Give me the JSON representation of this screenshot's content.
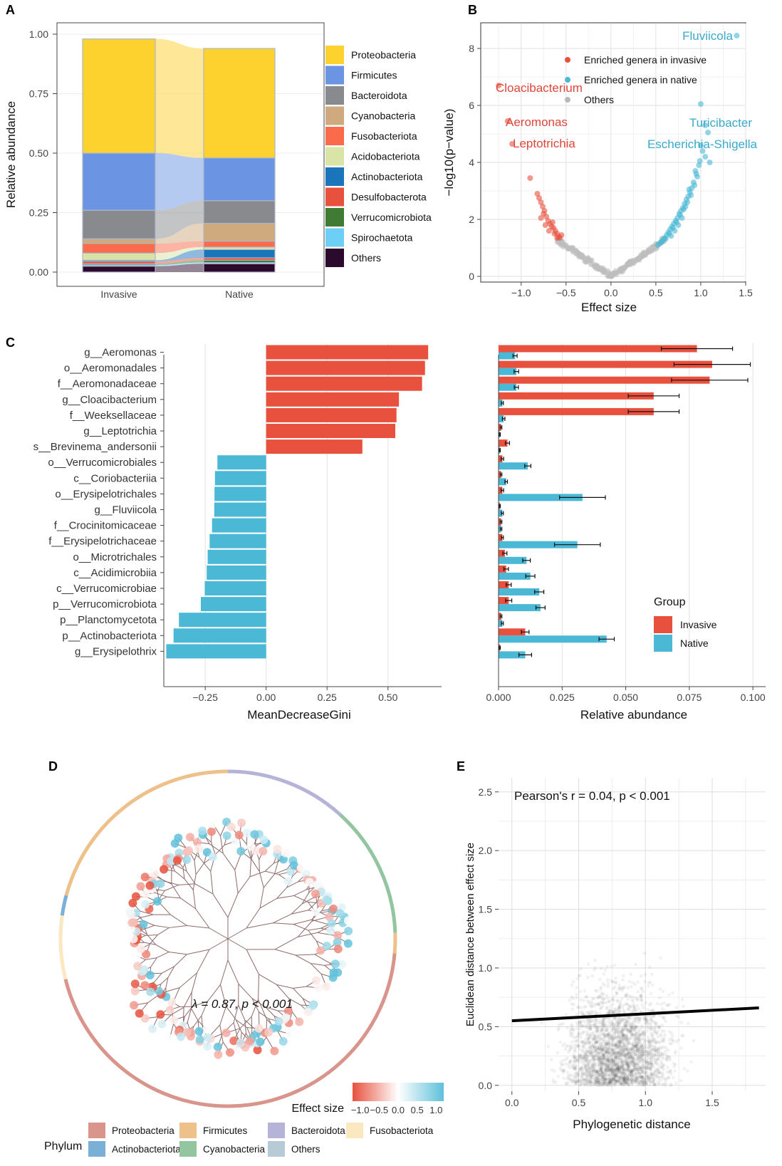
{
  "panels": [
    "A",
    "B",
    "C",
    "D",
    "E"
  ],
  "colors": {
    "invasive": "#e8513d",
    "native": "#4bb9d6",
    "others": "#b9b9b9",
    "red_text": "#e0453a",
    "blue_text": "#3aa9c9"
  },
  "chart_data": [
    {
      "id": "A",
      "type": "bar",
      "subtype": "stacked-alluvial",
      "xlabel": "",
      "ylabel": "Relative abundance",
      "ylim": [
        0,
        1
      ],
      "yticks": [
        "0.00",
        "0.25",
        "0.50",
        "0.75",
        "1.00"
      ],
      "categories": [
        "Invasive",
        "Native"
      ],
      "series": [
        {
          "name": "Others",
          "color": "#2b0a2e",
          "values": [
            0.025,
            0.035
          ]
        },
        {
          "name": "Spirochaetota",
          "color": "#6dcff6",
          "values": [
            0.005,
            0.005
          ]
        },
        {
          "name": "Verrucomicrobiota",
          "color": "#3f7b33",
          "values": [
            0.005,
            0.01
          ]
        },
        {
          "name": "Desulfobacterota",
          "color": "#e8513d",
          "values": [
            0.01,
            0.01
          ]
        },
        {
          "name": "Actinobacteriota",
          "color": "#1b75bb",
          "values": [
            0.005,
            0.035
          ]
        },
        {
          "name": "Acidobacteriota",
          "color": "#d8e5a7",
          "values": [
            0.03,
            0.01
          ]
        },
        {
          "name": "Fusobacteriota",
          "color": "#f96b4a",
          "values": [
            0.04,
            0.025
          ]
        },
        {
          "name": "Cyanobacteria",
          "color": "#cfaa7e",
          "values": [
            0.02,
            0.075
          ]
        },
        {
          "name": "Bacteroidota",
          "color": "#888a8e",
          "values": [
            0.12,
            0.095
          ]
        },
        {
          "name": "Firmicutes",
          "color": "#6b95e3",
          "values": [
            0.24,
            0.18
          ]
        },
        {
          "name": "Proteobacteria",
          "color": "#fdd22f",
          "values": [
            0.48,
            0.46
          ]
        }
      ],
      "legend": [
        "Proteobacteria",
        "Firmicutes",
        "Bacteroidota",
        "Cyanobacteria",
        "Fusobacteriota",
        "Acidobacteriota",
        "Actinobacteriota",
        "Desulfobacterota",
        "Verrucomicrobiota",
        "Spirochaetota",
        "Others"
      ],
      "legend_position": "right"
    },
    {
      "id": "B",
      "type": "scatter",
      "subtype": "volcano",
      "xlabel": "Effect size",
      "ylabel": "−log10(p−value)",
      "xlim": [
        -1.45,
        1.5
      ],
      "ylim": [
        -0.2,
        8.9
      ],
      "xticks": [
        -1.0,
        -0.5,
        0.0,
        0.5,
        1.0,
        1.5
      ],
      "xtick_labels": [
        "−1.0",
        "−0.5",
        "0.0",
        "0.5",
        "1.0",
        "1.5"
      ],
      "yticks": [
        0,
        2,
        4,
        6,
        8
      ],
      "legend": [
        "Enriched genera in invasive",
        "Enriched genera in native",
        "Others"
      ],
      "legend_position": "top-right",
      "invasive_points": [
        [
          -1.25,
          6.7
        ],
        [
          -1.15,
          5.45
        ],
        [
          -1.1,
          4.65
        ],
        [
          -0.9,
          3.45
        ],
        [
          -0.82,
          2.9
        ],
        [
          -0.8,
          2.75
        ],
        [
          -0.78,
          2.6
        ],
        [
          -0.76,
          2.45
        ],
        [
          -0.74,
          2.3
        ],
        [
          -0.72,
          2.1
        ],
        [
          -0.7,
          1.95
        ],
        [
          -0.68,
          1.85
        ],
        [
          -0.66,
          1.75
        ],
        [
          -0.64,
          1.7
        ],
        [
          -0.62,
          1.6
        ],
        [
          -0.6,
          1.5
        ],
        [
          -0.58,
          1.4
        ],
        [
          -0.57,
          1.35
        ],
        [
          -0.55,
          1.45
        ],
        [
          -0.75,
          2.2
        ],
        [
          -0.73,
          1.8
        ],
        [
          -0.69,
          1.6
        ],
        [
          -0.65,
          1.9
        ],
        [
          -0.63,
          1.5
        ],
        [
          -0.6,
          1.35
        ],
        [
          -0.78,
          2.05
        ]
      ],
      "native_points": [
        [
          1.4,
          8.45
        ],
        [
          1.0,
          6.05
        ],
        [
          1.05,
          5.3
        ],
        [
          1.08,
          5.05
        ],
        [
          1.0,
          4.6
        ],
        [
          1.05,
          4.2
        ],
        [
          1.1,
          4.0
        ],
        [
          0.95,
          3.6
        ],
        [
          0.92,
          3.3
        ],
        [
          0.9,
          3.1
        ],
        [
          0.88,
          2.95
        ],
        [
          0.86,
          2.8
        ],
        [
          0.84,
          2.7
        ],
        [
          0.82,
          2.55
        ],
        [
          0.8,
          2.4
        ],
        [
          0.78,
          2.3
        ],
        [
          0.76,
          2.2
        ],
        [
          0.74,
          2.05
        ],
        [
          0.72,
          1.95
        ],
        [
          0.7,
          1.85
        ],
        [
          0.68,
          1.75
        ],
        [
          0.66,
          1.65
        ],
        [
          0.64,
          1.55
        ],
        [
          0.62,
          1.45
        ],
        [
          0.6,
          1.35
        ],
        [
          0.58,
          1.28
        ],
        [
          0.56,
          1.2
        ],
        [
          0.54,
          1.15
        ],
        [
          0.52,
          1.1
        ],
        [
          0.98,
          3.9
        ],
        [
          0.96,
          3.5
        ],
        [
          0.93,
          3.2
        ],
        [
          0.89,
          2.85
        ],
        [
          0.85,
          2.6
        ],
        [
          0.81,
          2.35
        ],
        [
          0.77,
          2.15
        ],
        [
          0.73,
          1.9
        ],
        [
          0.69,
          1.7
        ],
        [
          0.65,
          1.5
        ],
        [
          0.61,
          1.32
        ],
        [
          0.57,
          1.22
        ],
        [
          1.02,
          4.4
        ],
        [
          0.99,
          4.05
        ],
        [
          0.94,
          3.7
        ],
        [
          0.87,
          3.05
        ],
        [
          0.83,
          2.45
        ],
        [
          0.79,
          2.05
        ],
        [
          0.75,
          1.8
        ],
        [
          0.71,
          1.6
        ],
        [
          0.67,
          1.42
        ]
      ],
      "annotations": [
        {
          "text": "Cloacibacterium",
          "group": "invasive"
        },
        {
          "text": "Aeromonas",
          "group": "invasive"
        },
        {
          "text": "Leptotrichia",
          "group": "invasive"
        },
        {
          "text": "Fluviicola",
          "group": "native"
        },
        {
          "text": "Turicibacter",
          "group": "native"
        },
        {
          "text": "Escherichia-Shigella",
          "group": "native"
        }
      ]
    },
    {
      "id": "C-left",
      "type": "bar",
      "orientation": "horizontal",
      "xlabel": "MeanDecreaseGini",
      "ylabel": "",
      "xlim": [
        -0.42,
        0.72
      ],
      "xticks": [
        -0.25,
        0.0,
        0.25,
        0.5
      ],
      "xtick_labels": [
        "−0.25",
        "0.00",
        "0.25",
        "0.50"
      ],
      "categories": [
        "g__Aeromonas",
        "o__Aeromonadales",
        "f__Aeromonadaceae",
        "g__Cloacibacterium",
        "f__Weeksellaceae",
        "g__Leptotrichia",
        "s__Brevinema_andersonii",
        "o__Verrucomicrobiales",
        "c__Coriobacteriia",
        "o__Erysipelotrichales",
        "g__Fluviicola",
        "f__Crocinitomicaceae",
        "f__Erysipelotrichaceae",
        "o__Microtrichales",
        "c__Acidimicrobiia",
        "c__Verrucomicrobiae",
        "p__Verrucomicrobiota",
        "p__Planctomycetota",
        "p__Actinobacteriota",
        "g__Erysipelothrix"
      ],
      "values": [
        0.665,
        0.652,
        0.64,
        0.545,
        0.535,
        0.53,
        0.395,
        -0.2,
        -0.21,
        -0.212,
        -0.213,
        -0.222,
        -0.232,
        -0.24,
        -0.244,
        -0.252,
        -0.268,
        -0.358,
        -0.38,
        -0.41
      ]
    },
    {
      "id": "C-right",
      "type": "bar",
      "orientation": "horizontal",
      "xlabel": "Relative abundance",
      "xlim": [
        0,
        0.105
      ],
      "xticks": [
        0.0,
        0.025,
        0.05,
        0.075,
        0.1
      ],
      "xtick_labels": [
        "0.000",
        "0.025",
        "0.050",
        "0.075",
        "0.100"
      ],
      "legend_title": "Group",
      "legend": [
        "Invasive",
        "Native"
      ],
      "legend_position": "right",
      "categories": [
        "g__Aeromonas",
        "o__Aeromonadales",
        "f__Aeromonadaceae",
        "g__Cloacibacterium",
        "f__Weeksellaceae",
        "g__Leptotrichia",
        "s__Brevinema_andersonii",
        "o__Verrucomicrobiales",
        "c__Coriobacteriia",
        "o__Erysipelotrichales",
        "g__Fluviicola",
        "f__Crocinitomicaceae",
        "f__Erysipelotrichaceae",
        "o__Microtrichales",
        "c__Acidimicrobiia",
        "c__Verrucomicrobiae",
        "p__Verrucomicrobiota",
        "p__Planctomycetota",
        "p__Actinobacteriota",
        "g__Erysipelothrix"
      ],
      "series": [
        {
          "name": "Invasive",
          "values": [
            0.078,
            0.084,
            0.083,
            0.061,
            0.061,
            0.001,
            0.0035,
            0.0015,
            0.001,
            0.0015,
            0.0005,
            0.001,
            0.0015,
            0.0025,
            0.003,
            0.004,
            0.004,
            0.001,
            0.0105,
            0.0005
          ],
          "errors": [
            0.014,
            0.015,
            0.015,
            0.01,
            0.01,
            0.0003,
            0.0008,
            0.0005,
            0.0003,
            0.0005,
            0.0002,
            0.0003,
            0.0004,
            0.0008,
            0.0009,
            0.001,
            0.0012,
            0.0003,
            0.0015,
            0.0002
          ]
        },
        {
          "name": "Native",
          "values": [
            0.0065,
            0.007,
            0.007,
            0.0015,
            0.002,
            0.0005,
            0.0005,
            0.0115,
            0.003,
            0.033,
            0.0015,
            0.001,
            0.031,
            0.011,
            0.0125,
            0.016,
            0.0165,
            0.0015,
            0.0425,
            0.0105
          ],
          "errors": [
            0.0008,
            0.0009,
            0.0008,
            0.0004,
            0.0005,
            0.0002,
            0.0002,
            0.0012,
            0.0005,
            0.009,
            0.0004,
            0.0003,
            0.009,
            0.0015,
            0.0018,
            0.0018,
            0.0018,
            0.0004,
            0.003,
            0.0025
          ]
        }
      ]
    },
    {
      "id": "D",
      "type": "other",
      "subtype": "circular-phylogenetic-tree",
      "annotation": "λ = 0.87, p < 0.001",
      "effect_scale_title": "Effect size",
      "effect_scale_ticks": [
        "−1.0",
        "−0.5",
        "0.0",
        "0.5",
        "1.0"
      ],
      "legend_title": "Phylum",
      "legend": [
        {
          "name": "Proteobacteria",
          "color": "#d9948b"
        },
        {
          "name": "Firmicutes",
          "color": "#eec08a"
        },
        {
          "name": "Bacteroidota",
          "color": "#b6b3d8"
        },
        {
          "name": "Fusobacteriota",
          "color": "#fbe7c0"
        },
        {
          "name": "Actinobacteriota",
          "color": "#7bb0d6"
        },
        {
          "name": "Cyanobacteria",
          "color": "#93c6a0"
        },
        {
          "name": "Others",
          "color": "#b7cbd6"
        }
      ],
      "ring_segments": [
        {
          "phylum": "Bacteroidota",
          "start_deg": 0,
          "end_deg": 42
        },
        {
          "phylum": "Cyanobacteria",
          "start_deg": 42,
          "end_deg": 88
        },
        {
          "phylum": "Firmicutes",
          "start_deg": 88,
          "end_deg": 95
        },
        {
          "phylum": "Proteobacteria",
          "start_deg": 95,
          "end_deg": 256
        },
        {
          "phylum": "Fusobacteriota",
          "start_deg": 256,
          "end_deg": 278
        },
        {
          "phylum": "Actinobacteriota",
          "start_deg": 278,
          "end_deg": 285
        },
        {
          "phylum": "Firmicutes",
          "start_deg": 285,
          "end_deg": 360
        }
      ]
    },
    {
      "id": "E",
      "type": "scatter",
      "subtype": "density-scatter-with-regression",
      "xlabel": "Phylogenetic distance",
      "ylabel": "Euclidean distance between effect size",
      "xlim": [
        -0.1,
        1.9
      ],
      "ylim": [
        -0.05,
        2.62
      ],
      "xticks": [
        0.0,
        0.5,
        1.0,
        1.5
      ],
      "xtick_labels": [
        "0.0",
        "0.5",
        "1.0",
        "1.5"
      ],
      "yticks": [
        0.0,
        0.5,
        1.0,
        1.5,
        2.0,
        2.5
      ],
      "ytick_labels": [
        "0.0",
        "0.5",
        "1.0",
        "1.5",
        "2.0",
        "2.5"
      ],
      "annotation": "Pearson's r = 0.04, p < 0.001",
      "regression": {
        "x": [
          0.0,
          1.85
        ],
        "y": [
          0.55,
          0.66
        ]
      }
    }
  ]
}
